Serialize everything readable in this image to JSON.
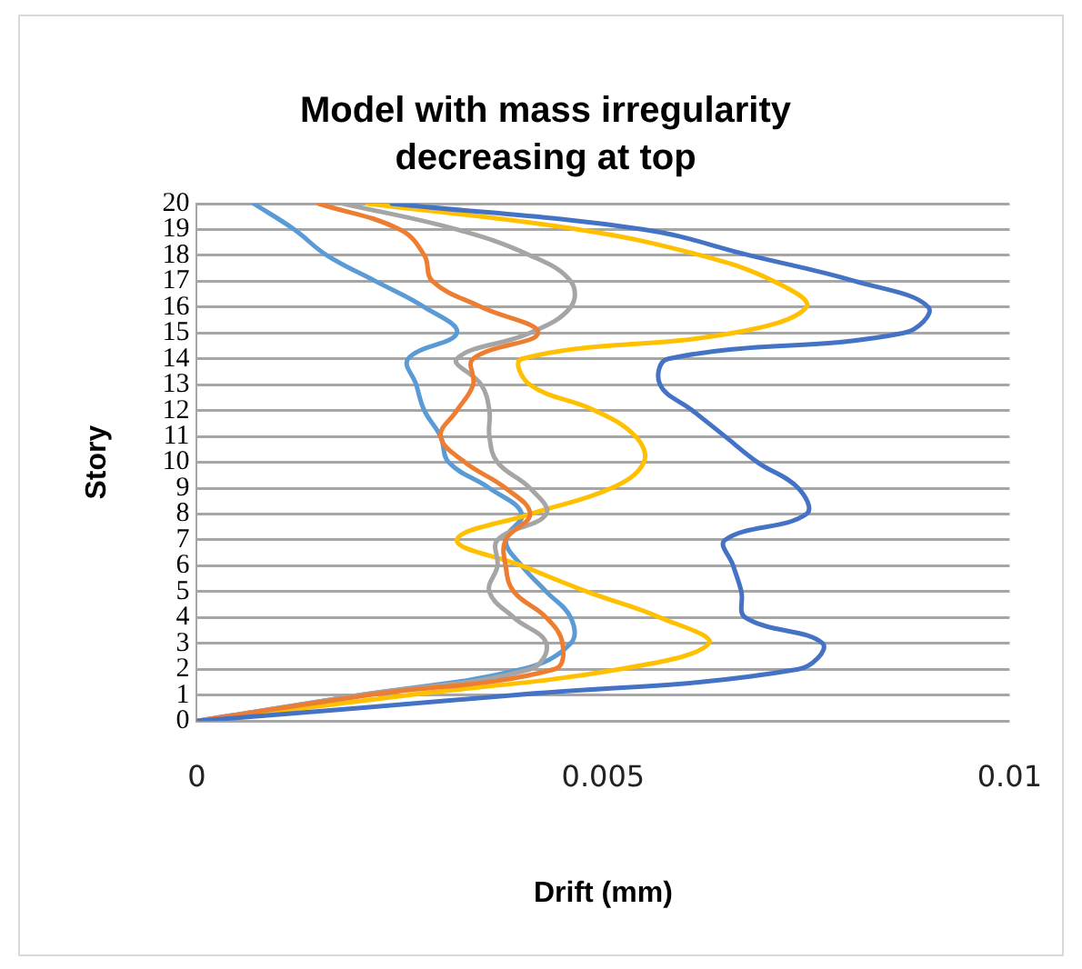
{
  "chart_data": {
    "type": "line",
    "title": "Model with mass irregularity decreasing at top",
    "xlabel": "Drift (mm)",
    "ylabel": "Story",
    "xlim": [
      0,
      0.01
    ],
    "xticks": [
      0,
      0.005,
      0.01
    ],
    "ylim": [
      0,
      20
    ],
    "yticks": [
      0,
      1,
      2,
      3,
      4,
      5,
      6,
      7,
      8,
      9,
      10,
      11,
      12,
      13,
      14,
      15,
      16,
      17,
      18,
      19,
      20
    ],
    "grid": "y",
    "legend": false,
    "marker": "none",
    "line_style": "solid",
    "series": [
      {
        "color": "#4472c4",
        "x": [
          0,
          0.0039,
          0.0074,
          0.0077,
          0.00675,
          0.0067,
          0.0066,
          0.0065,
          0.0075,
          0.0074,
          0.0069,
          0.0065,
          0.0061,
          0.0057,
          0.0058,
          0.0087,
          0.009,
          0.0081,
          0.0068,
          0.0055,
          0.0024
        ],
        "values": [
          0,
          1,
          2,
          3,
          4,
          5,
          6,
          7,
          8,
          9,
          10,
          11,
          12,
          13,
          14,
          15,
          16,
          17,
          18,
          19,
          20
        ]
      },
      {
        "color": "#ed7d31",
        "x": [
          0,
          0.0021,
          0.0044,
          0.0045,
          0.0043,
          0.0039,
          0.0038,
          0.0038,
          0.0041,
          0.0038,
          0.0033,
          0.003,
          0.0032,
          0.0034,
          0.0034,
          0.0042,
          0.0035,
          0.0029,
          0.0028,
          0.0025,
          0.0015
        ],
        "values": [
          0,
          1,
          2,
          3,
          4,
          5,
          6,
          7,
          8,
          9,
          10,
          11,
          12,
          13,
          14,
          15,
          16,
          17,
          18,
          19,
          20
        ]
      },
      {
        "color": "#a5a5a5",
        "x": [
          0,
          0.002,
          0.0041,
          0.0043,
          0.0039,
          0.0036,
          0.0037,
          0.0037,
          0.0043,
          0.0041,
          0.0037,
          0.0036,
          0.0036,
          0.0035,
          0.0032,
          0.0041,
          0.0046,
          0.0046,
          0.0041,
          0.0032,
          0.0018
        ],
        "values": [
          0,
          1,
          2,
          3,
          4,
          5,
          6,
          7,
          8,
          9,
          10,
          11,
          12,
          13,
          14,
          15,
          16,
          17,
          18,
          19,
          20
        ]
      },
      {
        "color": "#ffc000",
        "x": [
          0,
          0.0026,
          0.0052,
          0.0063,
          0.0057,
          0.0048,
          0.004,
          0.0032,
          0.0041,
          0.0051,
          0.0055,
          0.0054,
          0.0049,
          0.0041,
          0.004,
          0.0066,
          0.0075,
          0.0071,
          0.0062,
          0.0047,
          0.0021
        ],
        "values": [
          0,
          1,
          2,
          3,
          4,
          5,
          6,
          7,
          8,
          9,
          10,
          11,
          12,
          13,
          14,
          15,
          16,
          17,
          18,
          19,
          20
        ]
      },
      {
        "color": "#5b9bd5",
        "x": [
          0,
          0.002,
          0.004,
          0.0046,
          0.0046,
          0.0043,
          0.004,
          0.0038,
          0.004,
          0.0036,
          0.0031,
          0.003,
          0.0028,
          0.0027,
          0.0026,
          0.0032,
          0.0028,
          0.0022,
          0.0016,
          0.0012,
          0.0007
        ],
        "values": [
          0,
          1,
          2,
          3,
          4,
          5,
          6,
          7,
          8,
          9,
          10,
          11,
          12,
          13,
          14,
          15,
          16,
          17,
          18,
          19,
          20
        ]
      }
    ]
  }
}
